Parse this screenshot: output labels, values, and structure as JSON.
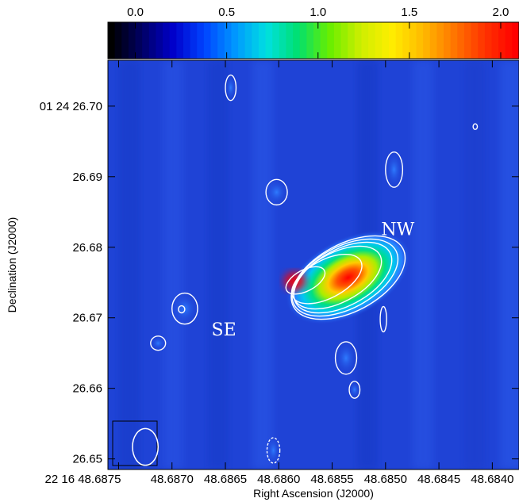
{
  "chart_data": {
    "type": "heatmap",
    "title": "",
    "xlabel": "Right Ascension (J2000)",
    "ylabel": "Declination (J2000)",
    "x_tick_labels": [
      "22 16 48.6875",
      "48.6870",
      "48.6865",
      "48.6860",
      "48.6855",
      "48.6850",
      "48.6845",
      "48.6840"
    ],
    "y_tick_labels": [
      "01 24 26.70",
      "26.69",
      "26.68",
      "26.67",
      "26.66",
      "26.65"
    ],
    "xlim": [
      48.6876,
      48.68375
    ],
    "ylim": [
      26.6485,
      26.7065
    ],
    "x_ticks": [
      48.6875,
      48.687,
      48.6865,
      48.686,
      48.6855,
      48.685,
      48.6845,
      48.684
    ],
    "y_ticks": [
      26.7,
      26.69,
      26.68,
      26.67,
      26.66,
      26.65
    ],
    "colorbar": {
      "ticks": [
        0.0,
        0.5,
        1.0,
        1.5,
        2.0
      ],
      "tick_labels": [
        "0.0",
        "0.5",
        "1.0",
        "1.5",
        "2.0"
      ],
      "range": [
        -0.15,
        2.1
      ]
    },
    "colormap": [
      "#000000",
      "#000066",
      "#0000cc",
      "#0044ff",
      "#0099ff",
      "#00e0e0",
      "#00e070",
      "#66ee00",
      "#ccee00",
      "#ffee00",
      "#ffbb00",
      "#ff7700",
      "#ff3300",
      "#ff0000"
    ],
    "background_color": "#1f43d6",
    "annotations": [
      {
        "text": "NW",
        "x": 48.68504,
        "y": 26.6817
      },
      {
        "text": "SE",
        "x": 48.68663,
        "y": 26.6675
      }
    ],
    "peak": {
      "x": 48.68585,
      "y": 26.6752,
      "value": 2.0
    },
    "contours": [
      {
        "style": "solid",
        "x": 48.68535,
        "y": 26.6757,
        "rx": 0.00058,
        "ry": 0.0048,
        "tilt": -0.0032
      },
      {
        "style": "solid",
        "x": 48.68538,
        "y": 26.6757,
        "rx": 0.00054,
        "ry": 0.0044,
        "tilt": -0.003
      },
      {
        "style": "solid",
        "x": 48.6854,
        "y": 26.6757,
        "rx": 0.0005,
        "ry": 0.004,
        "tilt": -0.0028
      },
      {
        "style": "solid",
        "x": 48.68545,
        "y": 26.6757,
        "rx": 0.00045,
        "ry": 0.0035,
        "tilt": -0.0025
      },
      {
        "style": "solid",
        "x": 48.68555,
        "y": 26.6755,
        "rx": 0.00036,
        "ry": 0.0027,
        "tilt": -0.0018
      },
      {
        "style": "solid",
        "x": 48.68575,
        "y": 26.6753,
        "rx": 0.0002,
        "ry": 0.0015,
        "tilt": -0.0008
      },
      {
        "style": "solid",
        "x": 48.68645,
        "y": 26.7026,
        "rx": 5e-05,
        "ry": 0.0018,
        "tilt": 0
      },
      {
        "style": "solid",
        "x": 48.68492,
        "y": 26.691,
        "rx": 8e-05,
        "ry": 0.0025,
        "tilt": 0
      },
      {
        "style": "solid",
        "x": 48.68602,
        "y": 26.6878,
        "rx": 0.0001,
        "ry": 0.0018,
        "tilt": 0
      },
      {
        "style": "solid",
        "x": 48.68688,
        "y": 26.6713,
        "rx": 0.00012,
        "ry": 0.0022,
        "tilt": 0
      },
      {
        "style": "solid",
        "x": 48.68691,
        "y": 26.6712,
        "rx": 3e-05,
        "ry": 0.0005,
        "tilt": 0
      },
      {
        "style": "solid",
        "x": 48.68713,
        "y": 26.6664,
        "rx": 7e-05,
        "ry": 0.001,
        "tilt": 0
      },
      {
        "style": "solid",
        "x": 48.68502,
        "y": 26.6698,
        "rx": 3e-05,
        "ry": 0.0018,
        "tilt": 0
      },
      {
        "style": "solid",
        "x": 48.68537,
        "y": 26.6643,
        "rx": 0.0001,
        "ry": 0.0023,
        "tilt": 0
      },
      {
        "style": "solid",
        "x": 48.68529,
        "y": 26.6598,
        "rx": 5e-05,
        "ry": 0.0012,
        "tilt": 0
      },
      {
        "style": "solid",
        "x": 48.68416,
        "y": 26.6971,
        "rx": 2e-05,
        "ry": 0.0004,
        "tilt": 0
      },
      {
        "style": "dashed",
        "x": 48.68605,
        "y": 26.6512,
        "rx": 6e-05,
        "ry": 0.0018,
        "tilt": 0
      }
    ],
    "beam": {
      "x": 48.68725,
      "y": 26.6517,
      "rx": 0.00012,
      "ry": 0.0026
    }
  }
}
